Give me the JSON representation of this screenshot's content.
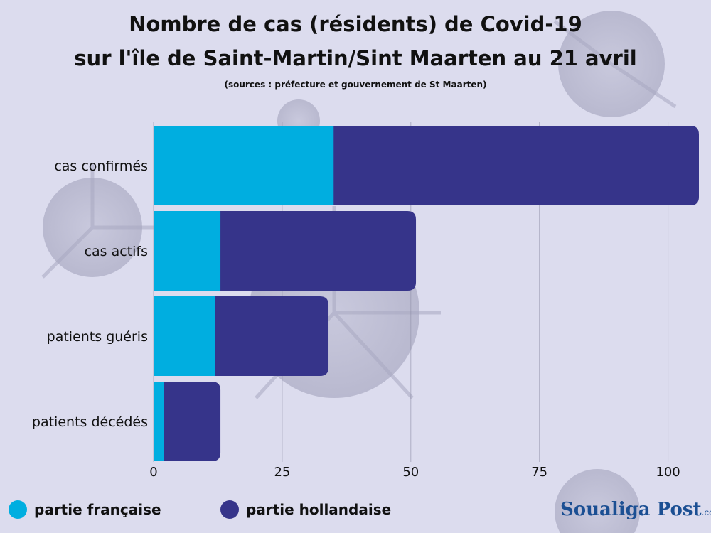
{
  "header": {
    "title_line1": "Nombre de  cas (résidents) de Covid-19",
    "title_line2": "sur l'île de Saint-Martin/Sint Maarten au 21 avril",
    "subtitle": "(sources : préfecture et gouvernement de St Maarten)"
  },
  "colors": {
    "background": "#d9d9ec",
    "french": "#00aee0",
    "dutch": "#36348a"
  },
  "chart_data": {
    "type": "bar",
    "orientation": "horizontal",
    "stacked": true,
    "categories": [
      "cas confirmés",
      "cas actifs",
      "patients guéris",
      "patients décédés"
    ],
    "series": [
      {
        "name": "partie française",
        "values": [
          35,
          13,
          12,
          2
        ]
      },
      {
        "name": "partie hollandaise",
        "values": [
          71,
          38,
          22,
          11
        ]
      }
    ],
    "xticks": [
      0,
      25,
      50,
      75,
      100
    ],
    "tick_labels": [
      "0",
      "25",
      "50",
      "75",
      "100"
    ],
    "xlim": [
      0,
      106
    ],
    "grid": "vertical",
    "legend": "bottom-left"
  },
  "legend": {
    "items": [
      {
        "label": "partie française"
      },
      {
        "label": "partie hollandaise"
      }
    ]
  },
  "logo": {
    "name": "Soualiga Post",
    "suffix": ".com"
  }
}
